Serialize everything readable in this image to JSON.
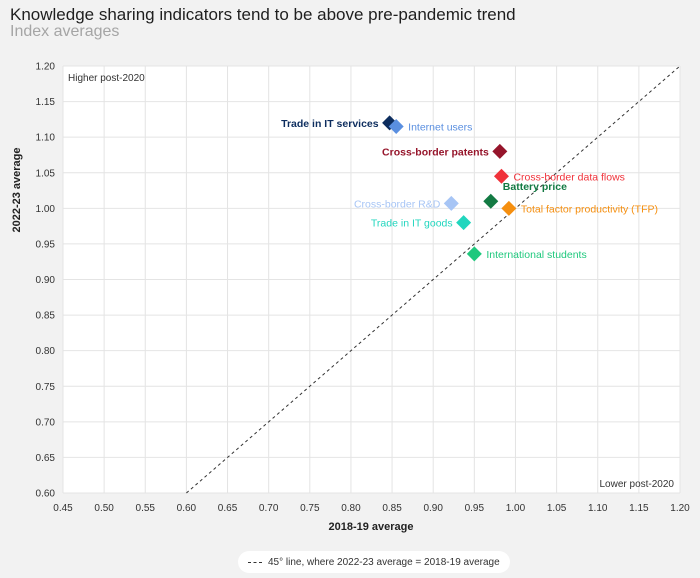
{
  "header": {
    "title": "Knowledge sharing indicators tend to be above pre-pandemic trend",
    "subtitle": "Index averages"
  },
  "corner_labels": {
    "top_left": "Higher post-2020",
    "bottom_right": "Lower post-2020"
  },
  "legend": {
    "text": "45° line, where 2022-23 average = 2018-19 average"
  },
  "chart_data": {
    "type": "scatter",
    "title": "Knowledge sharing indicators tend to be above pre-pandemic trend",
    "subtitle": "Index averages",
    "xlabel": "2018-19 average",
    "ylabel": "2022-23 average",
    "xlim": [
      0.45,
      1.2
    ],
    "ylim": [
      0.6,
      1.2
    ],
    "xticks": [
      "0.45",
      "0.50",
      "0.55",
      "0.60",
      "0.65",
      "0.70",
      "0.75",
      "0.80",
      "0.85",
      "0.90",
      "0.95",
      "1.00",
      "1.05",
      "1.10",
      "1.15",
      "1.20"
    ],
    "yticks": [
      "0.60",
      "0.65",
      "0.70",
      "0.75",
      "0.80",
      "0.85",
      "0.90",
      "0.95",
      "1.00",
      "1.05",
      "1.10",
      "1.15",
      "1.20"
    ],
    "grid": true,
    "reference_line": {
      "from": [
        0.6,
        0.6
      ],
      "to": [
        1.2,
        1.2
      ],
      "style": "dashed"
    },
    "points": [
      {
        "label": "Trade in IT services",
        "x": 0.847,
        "y": 1.12,
        "color": "#0d2d5e",
        "label_side": "left"
      },
      {
        "label": "Internet users",
        "x": 0.855,
        "y": 1.115,
        "color": "#5a8fe0",
        "label_side": "right"
      },
      {
        "label": "Cross-border patents",
        "x": 0.981,
        "y": 1.08,
        "color": "#96152b",
        "label_side": "left"
      },
      {
        "label": "Cross-border data flows",
        "x": 0.983,
        "y": 1.045,
        "color": "#f0323a",
        "label_side": "right"
      },
      {
        "label": "Battery price",
        "x": 0.97,
        "y": 1.01,
        "color": "#137a43",
        "label_side": "above-right"
      },
      {
        "label": "Total factor productivity (TFP)",
        "x": 0.992,
        "y": 1.0,
        "color": "#f58f10",
        "label_side": "right"
      },
      {
        "label": "Cross-border R&D",
        "x": 0.922,
        "y": 1.007,
        "color": "#a7c5f5",
        "label_side": "left"
      },
      {
        "label": "Trade in IT goods",
        "x": 0.937,
        "y": 0.98,
        "color": "#21d6be",
        "label_side": "left"
      },
      {
        "label": "International students",
        "x": 0.95,
        "y": 0.936,
        "color": "#1fc87d",
        "label_side": "right"
      }
    ]
  }
}
